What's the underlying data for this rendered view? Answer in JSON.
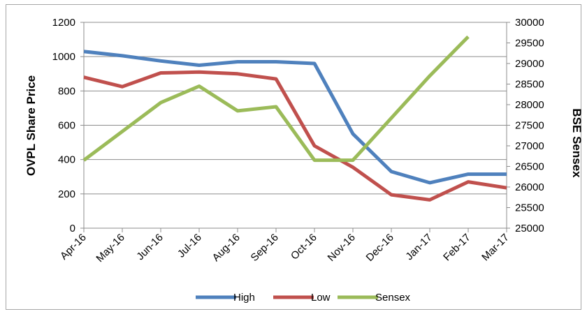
{
  "chart_data": {
    "type": "line",
    "categories": [
      "Apr-16",
      "May-16",
      "Jun-16",
      "Jul-16",
      "Aug-16",
      "Sep-16",
      "Oct-16",
      "Nov-16",
      "Dec-16",
      "Jan-17",
      "Feb-17",
      "Mar-17"
    ],
    "ylabel": "OVPL Share Price",
    "y2label": "BSE Sensex",
    "ylim": [
      0,
      1200
    ],
    "y2lim": [
      25000,
      30000
    ],
    "yticks": [
      0,
      200,
      400,
      600,
      800,
      1000,
      1200
    ],
    "y2ticks": [
      25000,
      25500,
      26000,
      26500,
      27000,
      27500,
      28000,
      28500,
      29000,
      29500,
      30000
    ],
    "grid": true,
    "legend_position": "bottom",
    "series": [
      {
        "name": "High",
        "axis": "left",
        "color": "#4f81bd",
        "values": [
          1030,
          1005,
          975,
          950,
          970,
          970,
          960,
          550,
          330,
          265,
          315,
          315
        ]
      },
      {
        "name": "Low",
        "axis": "left",
        "color": "#c0504d",
        "values": [
          880,
          825,
          905,
          910,
          900,
          870,
          480,
          355,
          195,
          165,
          270,
          235
        ]
      },
      {
        "name": "Sensex",
        "axis": "right",
        "color": "#9bbb59",
        "values": [
          26650,
          null,
          28050,
          28450,
          27850,
          27950,
          26650,
          26650,
          null,
          28700,
          29650,
          null
        ]
      }
    ]
  }
}
